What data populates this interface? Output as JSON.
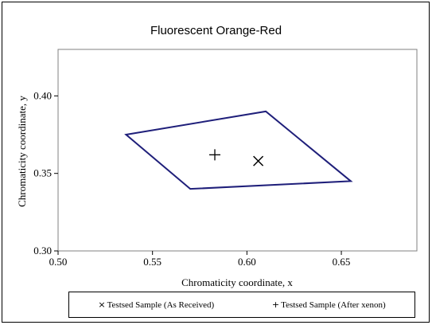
{
  "chart_data": {
    "type": "scatter",
    "title": "Fluorescent Orange-Red",
    "xlabel": "Chromaticity coordinate, x",
    "ylabel": "Chromaticity coordinate, y",
    "xlim": [
      0.5,
      0.69
    ],
    "ylim": [
      0.3,
      0.43
    ],
    "xticks": [
      "0.50",
      "0.55",
      "0.60",
      "0.65"
    ],
    "xtick_values": [
      0.5,
      0.55,
      0.6,
      0.65
    ],
    "yticks": [
      "0.30",
      "0.35",
      "0.40"
    ],
    "ytick_values": [
      0.3,
      0.35,
      0.4
    ],
    "grid": false,
    "legend_position": "bottom",
    "polygon": {
      "color": "#1f1f7a",
      "points": [
        [
          0.536,
          0.375
        ],
        [
          0.61,
          0.39
        ],
        [
          0.655,
          0.345
        ],
        [
          0.57,
          0.34
        ]
      ]
    },
    "series": [
      {
        "name": "Testsed Sample (As Received)",
        "marker": "x",
        "symbol": "×",
        "points": [
          [
            0.606,
            0.358
          ]
        ]
      },
      {
        "name": "Testsed Sample (After xenon)",
        "marker": "+",
        "symbol": "+",
        "points": [
          [
            0.583,
            0.362
          ]
        ]
      }
    ]
  }
}
